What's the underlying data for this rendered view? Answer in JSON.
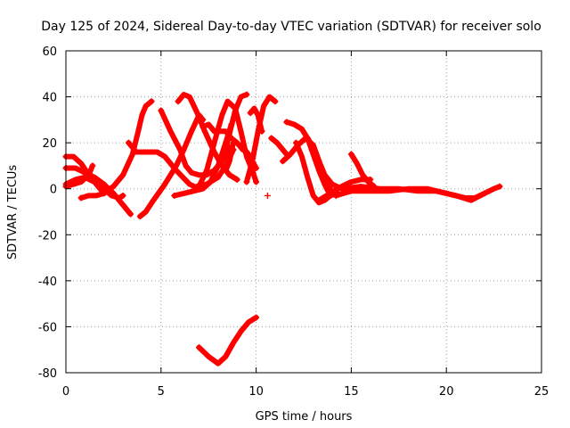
{
  "chart_data": {
    "type": "scatter",
    "title": "Day 125 of 2024, Sidereal Day-to-day VTEC variation (SDTVAR) for receiver solo",
    "xlabel": "GPS time / hours",
    "ylabel": "SDTVAR / TECUs",
    "xlim": [
      0,
      25
    ],
    "ylim": [
      -80,
      60
    ],
    "xticks": [
      "0",
      "5",
      "10",
      "15",
      "20",
      "25"
    ],
    "yticks": [
      "-80",
      "-60",
      "-40",
      "-20",
      "0",
      "20",
      "40",
      "60"
    ],
    "grid": true,
    "marker": "+",
    "color": "#ff0000",
    "series": [
      {
        "name": "arc-01",
        "x": [
          0.0,
          0.4,
          0.8,
          1.2,
          1.6,
          2.0
        ],
        "y": [
          14,
          14,
          11,
          6,
          2,
          -2
        ]
      },
      {
        "name": "arc-02",
        "x": [
          0.0,
          0.5,
          1.0,
          1.5,
          2.0,
          2.5,
          3.0,
          3.4
        ],
        "y": [
          9,
          9,
          7,
          5,
          2,
          -2,
          -7,
          -11
        ]
      },
      {
        "name": "arc-03",
        "x": [
          0.0,
          0.4,
          0.8,
          1.2,
          1.4
        ],
        "y": [
          1,
          2,
          3,
          6,
          10
        ]
      },
      {
        "name": "arc-04",
        "x": [
          0.0,
          0.5,
          1.0,
          1.5,
          2.0,
          2.4,
          2.8,
          3.0
        ],
        "y": [
          2,
          4,
          5,
          3,
          0,
          -3,
          -4,
          -3
        ]
      },
      {
        "name": "arc-05",
        "x": [
          0.8,
          1.2,
          1.6,
          2.0,
          2.5,
          3.0,
          3.5,
          3.8,
          4.0,
          4.2,
          4.5
        ],
        "y": [
          -4,
          -3,
          -3,
          -2,
          1,
          6,
          15,
          25,
          32,
          36,
          38
        ]
      },
      {
        "name": "arc-06",
        "x": [
          3.9,
          4.2,
          4.6,
          5.2,
          5.8,
          6.2,
          6.6,
          7.0,
          7.2
        ],
        "y": [
          -12,
          -10,
          -5,
          2,
          10,
          17,
          25,
          32,
          30
        ]
      },
      {
        "name": "arc-07",
        "x": [
          3.3,
          3.7,
          4.2,
          4.8,
          5.2,
          5.8,
          6.5,
          7.0
        ],
        "y": [
          20,
          16,
          16,
          16,
          14,
          8,
          2,
          0
        ]
      },
      {
        "name": "arc-08",
        "x": [
          5.0,
          5.5,
          6.0,
          6.3,
          6.6,
          7.0,
          7.4,
          7.8,
          8.2,
          8.6
        ],
        "y": [
          34,
          25,
          17,
          10,
          7,
          6,
          6,
          8,
          12,
          18
        ]
      },
      {
        "name": "arc-09",
        "x": [
          5.9,
          6.2,
          6.5,
          6.9,
          7.3,
          7.8,
          8.2,
          8.6,
          9.0
        ],
        "y": [
          38,
          41,
          40,
          33,
          25,
          16,
          10,
          6,
          4
        ]
      },
      {
        "name": "arc-10",
        "x": [
          5.7,
          6.2,
          6.7,
          7.2,
          7.6,
          8.0,
          8.4,
          8.7
        ],
        "y": [
          -3,
          -2,
          -1,
          0,
          3,
          10,
          20,
          28
        ]
      },
      {
        "name": "arc-11",
        "x": [
          7.0,
          7.4,
          7.8,
          8.2,
          8.5,
          8.9,
          9.2,
          9.5,
          9.8,
          10.0
        ],
        "y": [
          1,
          8,
          20,
          32,
          38,
          35,
          25,
          14,
          8,
          3
        ]
      },
      {
        "name": "arc-12",
        "x": [
          6.9,
          7.4,
          8.0,
          8.4,
          8.8
        ],
        "y": [
          1,
          2,
          5,
          10,
          17
        ]
      },
      {
        "name": "arc-13",
        "x": [
          7.2,
          7.5,
          7.8,
          8.1,
          8.4,
          8.7,
          9.0,
          9.3
        ],
        "y": [
          27,
          28,
          25,
          25,
          25,
          22,
          20,
          17
        ]
      },
      {
        "name": "arc-14",
        "x": [
          8.3,
          8.6,
          8.9,
          9.2,
          9.5
        ],
        "y": [
          14,
          24,
          34,
          40,
          41
        ]
      },
      {
        "name": "arc-15",
        "x": [
          8.4,
          8.6,
          8.8
        ],
        "y": [
          8,
          12,
          20
        ]
      },
      {
        "name": "arc-16",
        "x": [
          9.4,
          9.6,
          9.8,
          10.0
        ],
        "y": [
          17,
          15,
          12,
          9
        ]
      },
      {
        "name": "arc-17",
        "x": [
          9.5,
          9.8,
          10.1,
          10.4,
          10.7,
          11.0
        ],
        "y": [
          3,
          12,
          25,
          36,
          40,
          38
        ]
      },
      {
        "name": "arc-18",
        "x": [
          9.7,
          9.9,
          10.1,
          10.3
        ],
        "y": [
          33,
          35,
          32,
          25
        ]
      },
      {
        "name": "arc-19",
        "x": [
          10.8,
          11.1,
          11.4,
          11.6
        ],
        "y": [
          22,
          20,
          17,
          15
        ]
      },
      {
        "name": "arc-20",
        "x": [
          11.6,
          12.0,
          12.4,
          12.7,
          13.0,
          13.3,
          13.6,
          13.9
        ],
        "y": [
          29,
          28,
          26,
          22,
          15,
          8,
          2,
          -3
        ]
      },
      {
        "name": "arc-21",
        "x": [
          11.4,
          11.8,
          12.2,
          12.6,
          13.0,
          13.4,
          13.8,
          14.0
        ],
        "y": [
          12,
          15,
          19,
          22,
          19,
          10,
          2,
          -2
        ]
      },
      {
        "name": "arc-22",
        "x": [
          12.1,
          12.4,
          12.7,
          13.0,
          13.3,
          13.6,
          13.9,
          14.3
        ],
        "y": [
          20,
          14,
          5,
          -3,
          -6,
          -5,
          -3,
          -2
        ]
      },
      {
        "name": "arc-23",
        "x": [
          12.7,
          13.0,
          13.3,
          13.6,
          14.0,
          14.5,
          15.0
        ],
        "y": [
          22,
          18,
          12,
          6,
          2,
          0,
          0
        ]
      },
      {
        "name": "arc-24",
        "x": [
          13.3,
          13.7,
          14.1,
          14.5,
          15.0,
          15.5,
          16.0
        ],
        "y": [
          -5,
          -3,
          -1,
          1,
          3,
          4,
          4
        ]
      },
      {
        "name": "arc-25",
        "x": [
          15.0,
          15.3,
          15.6,
          15.9,
          16.2
        ],
        "y": [
          15,
          11,
          6,
          3,
          1
        ]
      },
      {
        "name": "arc-26",
        "x": [
          14.2,
          15.0,
          16.0,
          17.0,
          18.0,
          19.0,
          20.0,
          21.0,
          21.5,
          22.0,
          22.5,
          22.8
        ],
        "y": [
          -3,
          -1,
          -1,
          -1,
          0,
          0,
          -2,
          -4,
          -4,
          -2,
          0,
          1
        ]
      },
      {
        "name": "arc-27",
        "x": [
          14.5,
          15.5,
          16.5,
          17.5,
          18.5,
          19.5,
          20.5,
          21.3,
          22.0
        ],
        "y": [
          0,
          1,
          0,
          0,
          -1,
          -1,
          -3,
          -5,
          -2
        ]
      },
      {
        "name": "arc-28",
        "x": [
          7.0,
          7.5,
          8.0,
          8.4,
          8.8,
          9.2,
          9.6,
          10.0
        ],
        "y": [
          -69,
          -73,
          -76,
          -73,
          -67,
          -62,
          -58,
          -56
        ]
      }
    ],
    "isolated_points": {
      "x": [
        10.6
      ],
      "y": [
        -3
      ]
    }
  }
}
